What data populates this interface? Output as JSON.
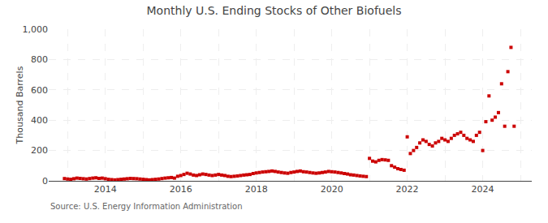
{
  "chart_data": {
    "type": "scatter",
    "title": "Monthly U.S. Ending Stocks of Other Biofuels",
    "ylabel": "Thousand Barrels",
    "annotations": [
      "Source: U.S. Energy Information Administration"
    ],
    "color": "#cc0000",
    "marker": "square",
    "grid": true,
    "x": [
      2012.917,
      2013.0,
      2013.083,
      2013.167,
      2013.25,
      2013.333,
      2013.417,
      2013.5,
      2013.583,
      2013.667,
      2013.75,
      2013.833,
      2013.917,
      2014.0,
      2014.083,
      2014.167,
      2014.25,
      2014.333,
      2014.417,
      2014.5,
      2014.583,
      2014.667,
      2014.75,
      2014.833,
      2014.917,
      2015.0,
      2015.083,
      2015.167,
      2015.25,
      2015.333,
      2015.417,
      2015.5,
      2015.583,
      2015.667,
      2015.75,
      2015.833,
      2015.917,
      2016.0,
      2016.083,
      2016.167,
      2016.25,
      2016.333,
      2016.417,
      2016.5,
      2016.583,
      2016.667,
      2016.75,
      2016.833,
      2016.917,
      2017.0,
      2017.083,
      2017.167,
      2017.25,
      2017.333,
      2017.417,
      2017.5,
      2017.583,
      2017.667,
      2017.75,
      2017.833,
      2017.917,
      2018.0,
      2018.083,
      2018.167,
      2018.25,
      2018.333,
      2018.417,
      2018.5,
      2018.583,
      2018.667,
      2018.75,
      2018.833,
      2018.917,
      2019.0,
      2019.083,
      2019.167,
      2019.25,
      2019.333,
      2019.417,
      2019.5,
      2019.583,
      2019.667,
      2019.75,
      2019.833,
      2019.917,
      2020.0,
      2020.083,
      2020.167,
      2020.25,
      2020.333,
      2020.417,
      2020.5,
      2020.583,
      2020.667,
      2020.75,
      2020.833,
      2020.917,
      2021.0,
      2021.083,
      2021.167,
      2021.25,
      2021.333,
      2021.417,
      2021.5,
      2021.583,
      2021.667,
      2021.75,
      2021.833,
      2021.917,
      2022.0,
      2022.083,
      2022.167,
      2022.25,
      2022.333,
      2022.417,
      2022.5,
      2022.583,
      2022.667,
      2022.75,
      2022.833,
      2022.917,
      2023.0,
      2023.083,
      2023.167,
      2023.25,
      2023.333,
      2023.417,
      2023.5,
      2023.583,
      2023.667,
      2023.75,
      2023.833,
      2023.917,
      2024.0,
      2024.083,
      2024.167,
      2024.25,
      2024.333,
      2024.417,
      2024.5,
      2024.583,
      2024.667,
      2024.75,
      2024.833
    ],
    "values": [
      15,
      12,
      10,
      14,
      18,
      16,
      14,
      12,
      15,
      18,
      20,
      16,
      18,
      14,
      10,
      8,
      6,
      8,
      10,
      12,
      14,
      16,
      15,
      14,
      12,
      10,
      8,
      6,
      8,
      10,
      12,
      15,
      18,
      20,
      22,
      18,
      30,
      35,
      42,
      50,
      45,
      38,
      35,
      40,
      45,
      42,
      38,
      35,
      38,
      42,
      38,
      35,
      30,
      28,
      30,
      32,
      35,
      38,
      40,
      42,
      48,
      52,
      55,
      58,
      60,
      62,
      65,
      62,
      58,
      55,
      52,
      50,
      55,
      58,
      62,
      65,
      60,
      58,
      55,
      52,
      50,
      52,
      55,
      58,
      62,
      60,
      58,
      55,
      52,
      48,
      45,
      40,
      38,
      35,
      32,
      30,
      28,
      148,
      130,
      125,
      135,
      140,
      138,
      135,
      100,
      90,
      80,
      75,
      70,
      290,
      180,
      200,
      220,
      250,
      270,
      260,
      240,
      230,
      250,
      260,
      280,
      270,
      260,
      280,
      300,
      310,
      320,
      300,
      280,
      270,
      260,
      300,
      320,
      200,
      390,
      560,
      400,
      420,
      450,
      640,
      360,
      720,
      880,
      360
    ],
    "xlim": [
      2012.5,
      2025.3
    ],
    "xticks": [
      {
        "value": 2013.0,
        "label": null
      },
      2014,
      {
        "value": 2015.0,
        "label": null
      },
      2016,
      {
        "value": 2017.0,
        "label": null
      },
      2018,
      {
        "value": 2019.0,
        "label": null
      },
      2020,
      {
        "value": 2021.0,
        "label": null
      },
      2022,
      {
        "value": 2023.0,
        "label": null
      },
      2024,
      {
        "value": 2025.0,
        "label": null
      }
    ],
    "ylim": [
      0,
      1000
    ],
    "yticks": [
      0,
      200,
      400,
      600,
      800,
      {
        "value": 1000,
        "label": "1,000"
      }
    ]
  }
}
